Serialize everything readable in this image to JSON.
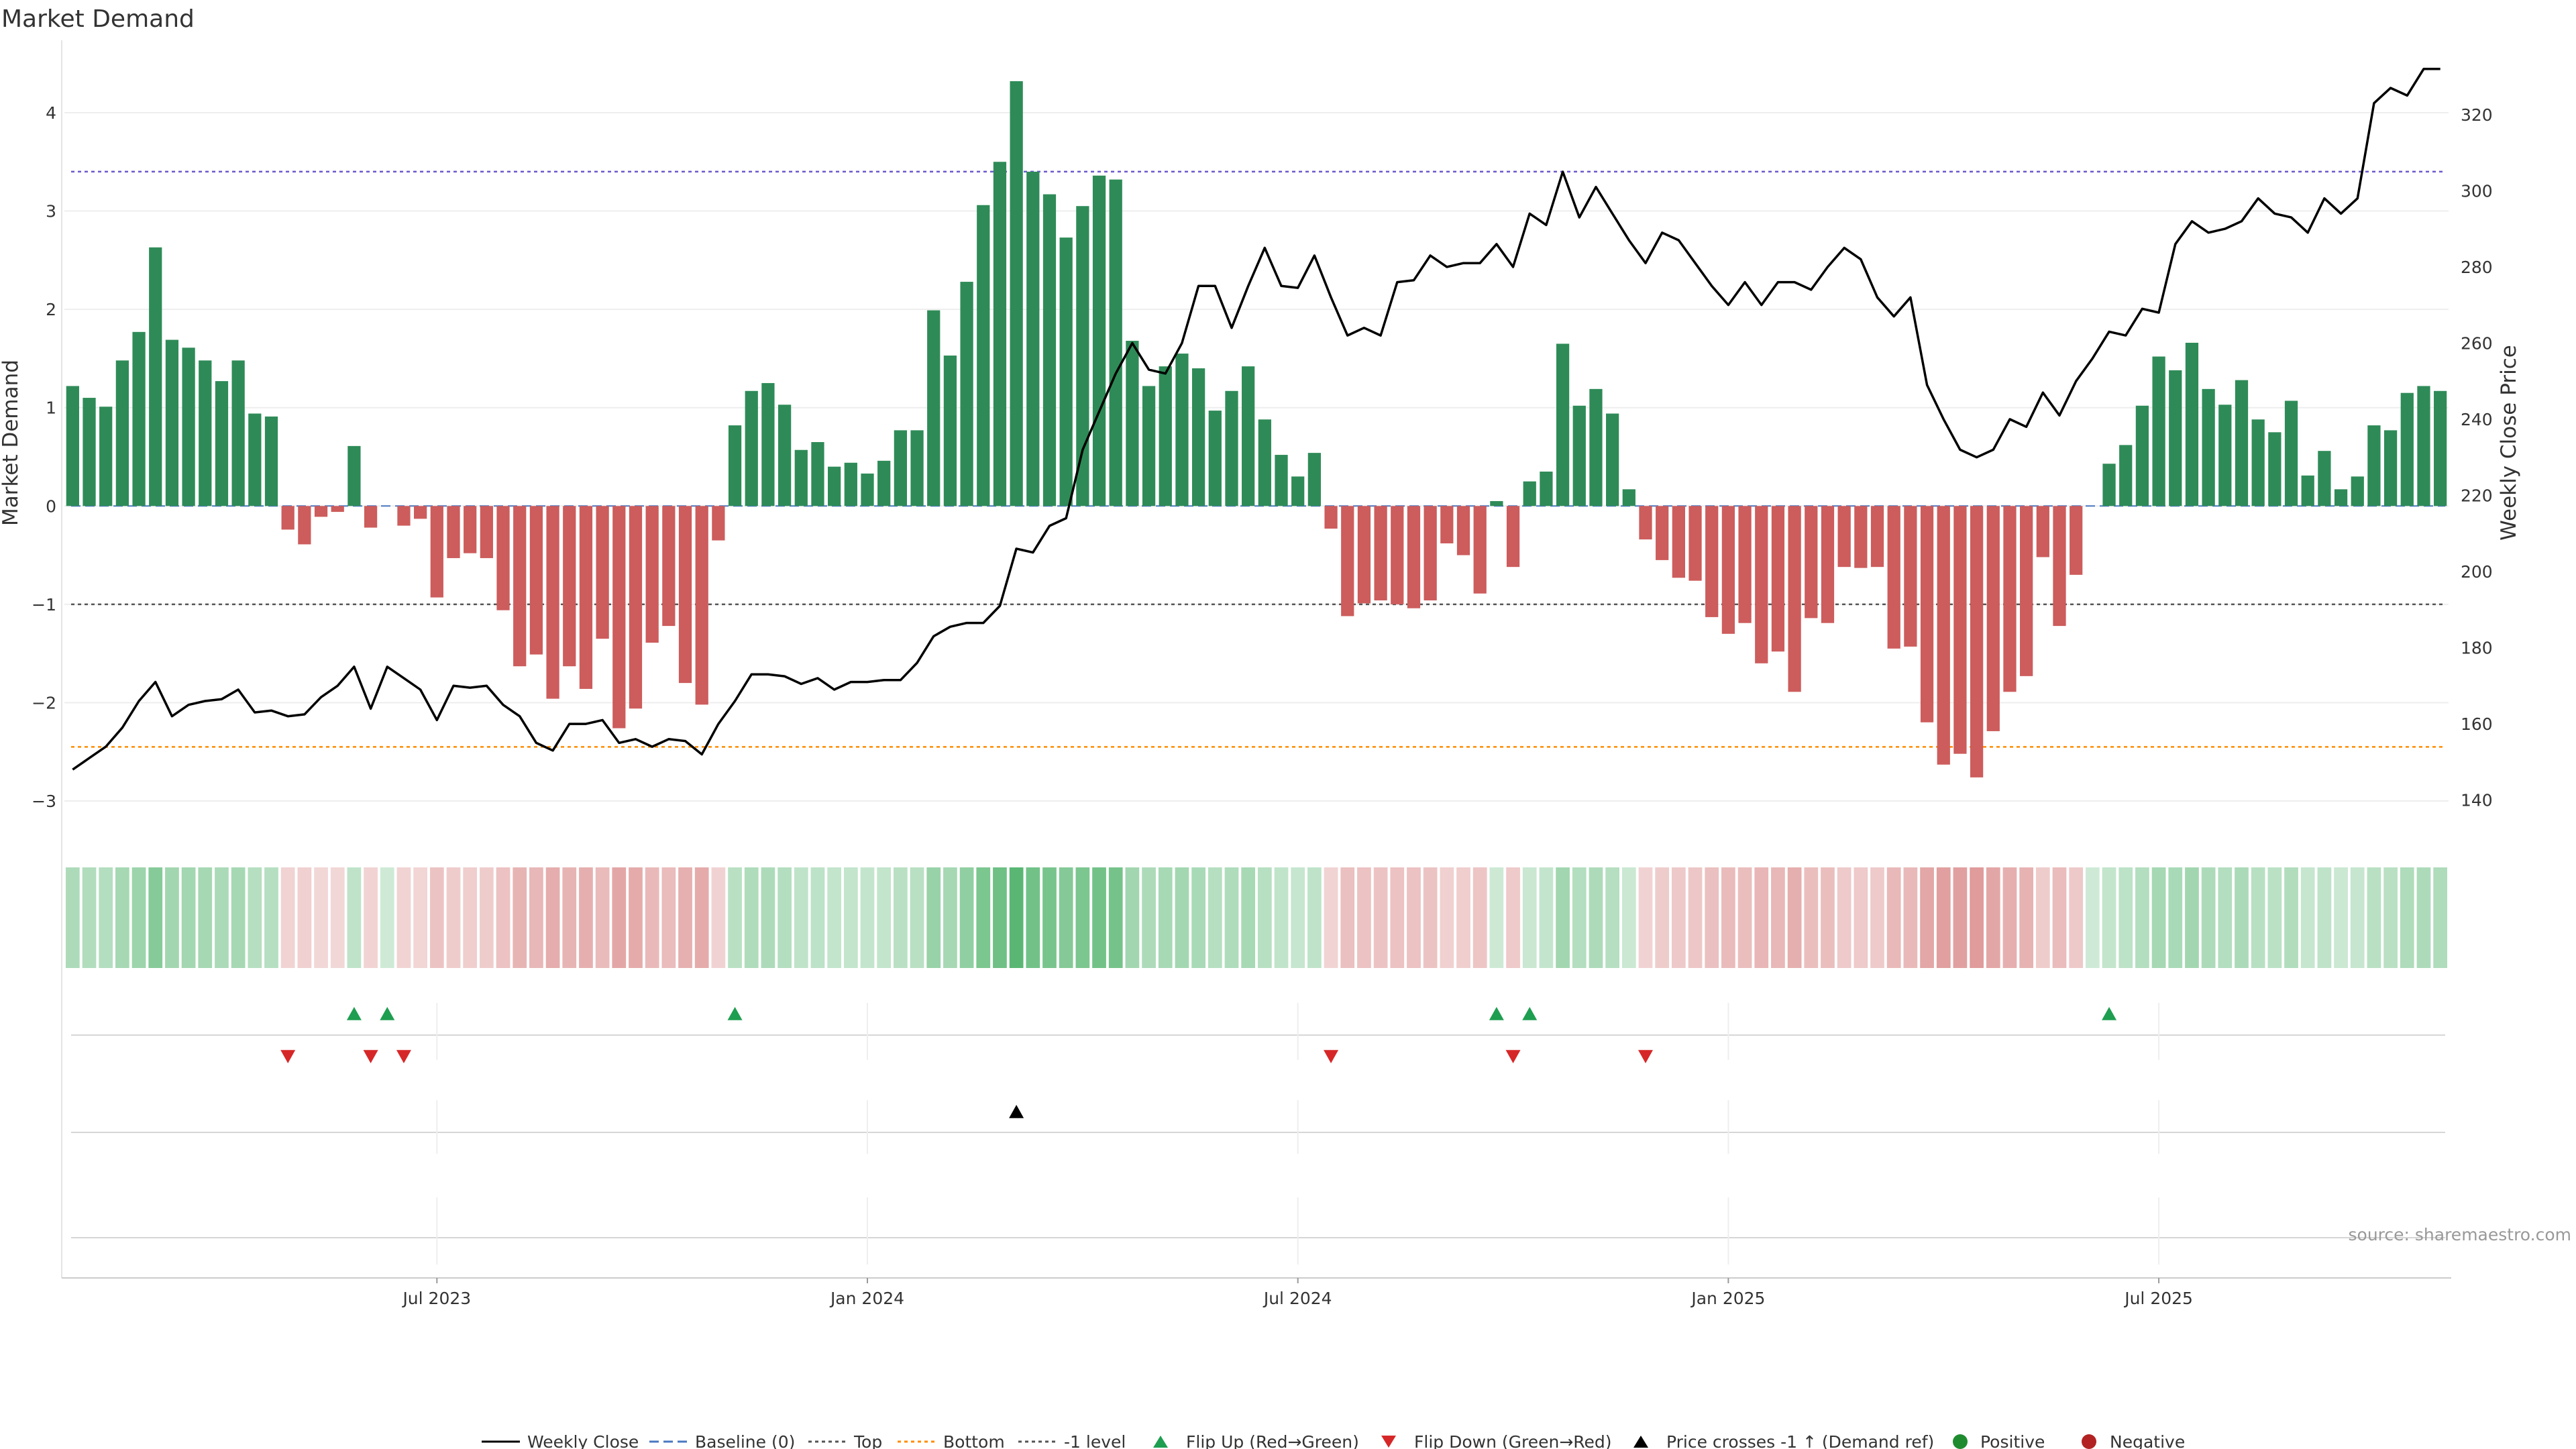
{
  "colors": {
    "positive_bar": "#2e8b57",
    "negative_bar": "#cd5c5c",
    "price_line": "#000000",
    "top_line": "#6a5acd",
    "bottom_line": "#ff8c00",
    "level_line": "#555555",
    "flip_up": "#1e9e50",
    "flip_down": "#d62728",
    "cross_marker": "#000000",
    "positive_dot": "#1e8c2e",
    "negative_dot": "#b22222"
  },
  "chart_data": {
    "type": "bar",
    "title": "Market Demand",
    "ylabel_left": "Market Demand",
    "ylabel_right": "Weekly Close Price",
    "source": "source: sharemaestro.com",
    "left_ticks": [
      "4",
      "3",
      "2",
      "1",
      "0",
      "−1",
      "−2",
      "−3"
    ],
    "left_tick_values": [
      4,
      3,
      2,
      1,
      0,
      -1,
      -2,
      -3
    ],
    "right_ticks": [
      "320",
      "300",
      "280",
      "260",
      "240",
      "220",
      "200",
      "180",
      "160",
      "140"
    ],
    "right_tick_values": [
      320,
      300,
      280,
      260,
      240,
      220,
      200,
      180,
      160,
      140
    ],
    "ylim_left": [
      -3.3,
      4.6
    ],
    "ylim_right": [
      132,
      336
    ],
    "x_ticks": [
      "Jul 2023",
      "Jan 2024",
      "Jul 2024",
      "Jan 2025",
      "Jul 2025"
    ],
    "x_tick_index": [
      22,
      48,
      74,
      100,
      126
    ],
    "reference_lines": {
      "top": 3.4,
      "bottom": -2.45,
      "minus_one_level": -1.0,
      "baseline": 0
    },
    "series": [
      {
        "name": "Market Demand",
        "values": [
          1.22,
          1.1,
          1.01,
          1.48,
          1.77,
          2.63,
          1.69,
          1.61,
          1.48,
          1.27,
          1.48,
          0.94,
          0.91,
          -0.24,
          -0.39,
          -0.11,
          -0.06,
          0.61,
          -0.22,
          0,
          -0.2,
          -0.13,
          -0.93,
          -0.53,
          -0.48,
          -0.53,
          -1.06,
          -1.63,
          -1.51,
          -1.96,
          -1.63,
          -1.86,
          -1.35,
          -2.26,
          -2.06,
          -1.39,
          -1.22,
          -1.8,
          -2.02,
          -0.35,
          0.82,
          1.17,
          1.25,
          1.03,
          0.57,
          0.65,
          0.4,
          0.44,
          0.33,
          0.46,
          0.77,
          0.77,
          1.99,
          1.53,
          2.28,
          3.06,
          3.5,
          4.32,
          3.4,
          3.17,
          2.73,
          3.05,
          3.36,
          3.32,
          1.68,
          1.22,
          1.42,
          1.55,
          1.4,
          0.97,
          1.17,
          1.42,
          0.88,
          0.52,
          0.3,
          0.54,
          -0.23,
          -1.12,
          -0.99,
          -0.96,
          -1.0,
          -1.04,
          -0.96,
          -0.38,
          -0.5,
          -0.89,
          0.05,
          -0.62,
          0.25,
          0.35,
          1.65,
          1.02,
          1.19,
          0.94,
          0.17,
          -0.34,
          -0.55,
          -0.73,
          -0.76,
          -1.13,
          -1.3,
          -1.19,
          -1.6,
          -1.48,
          -1.89,
          -1.14,
          -1.19,
          -0.62,
          -0.63,
          -0.62,
          -1.45,
          -1.43,
          -2.2,
          -2.63,
          -2.52,
          -2.76,
          -2.29,
          -1.89,
          -1.73,
          -0.52,
          -1.22,
          -0.7,
          0,
          0.43,
          0.62,
          1.02,
          1.52,
          1.38,
          1.66,
          1.19,
          1.03,
          1.28,
          0.88,
          0.75,
          1.07,
          0.31,
          0.56,
          0.17,
          0.3,
          0.82,
          0.77,
          1.15,
          1.22,
          1.17
        ]
      },
      {
        "name": "Weekly Close",
        "values": [
          148,
          151,
          154,
          159,
          166,
          171,
          162,
          165,
          166,
          166.5,
          169,
          163,
          163.5,
          162,
          162.5,
          167,
          170,
          175,
          164,
          175,
          172,
          169,
          161,
          170,
          169.5,
          170,
          165,
          162,
          155,
          153,
          160,
          160,
          161,
          155,
          156,
          154,
          156,
          155.5,
          152,
          160,
          166,
          173,
          173,
          172.5,
          170.5,
          172,
          169,
          171,
          171,
          171.5,
          171.5,
          176,
          183,
          185.5,
          186.5,
          186.5,
          191,
          206,
          205,
          212,
          214,
          232,
          242,
          252,
          260,
          253,
          252,
          260,
          275,
          275,
          264,
          275,
          285,
          275,
          274.5,
          283,
          272,
          262,
          264,
          262,
          276,
          276.5,
          283,
          280,
          281,
          281,
          286,
          280,
          294,
          291,
          305,
          293,
          301,
          294,
          287,
          281,
          289,
          287,
          281,
          275,
          270,
          276,
          270,
          276,
          276,
          274,
          280,
          285,
          282,
          272,
          267,
          272,
          249,
          240,
          232,
          230,
          232,
          240,
          238,
          247,
          241,
          250,
          256,
          263,
          262,
          269,
          268,
          286,
          292,
          289,
          290,
          292,
          298,
          294,
          293,
          289,
          298,
          294,
          298,
          323,
          327,
          325,
          332,
          332
        ]
      }
    ],
    "markers": {
      "flip_up_index": [
        17,
        19,
        40,
        86,
        88,
        123
      ],
      "flip_down_index": [
        13,
        18,
        20,
        76,
        87,
        95
      ],
      "price_cross_index": [
        57
      ]
    },
    "heat_strip": "green for positive demand weeks, red for negative; intensity scales with magnitude"
  },
  "legend": {
    "items": [
      {
        "label": "Weekly Close"
      },
      {
        "label": "Baseline (0)"
      },
      {
        "label": "Top"
      },
      {
        "label": "Bottom"
      },
      {
        "label": "-1 level"
      },
      {
        "label": "Flip Up (Red→Green)"
      },
      {
        "label": "Flip Down (Green→Red)"
      },
      {
        "label": "Price crosses -1 ↑ (Demand ref)"
      },
      {
        "label": "Positive"
      },
      {
        "label": "Negative"
      }
    ]
  }
}
